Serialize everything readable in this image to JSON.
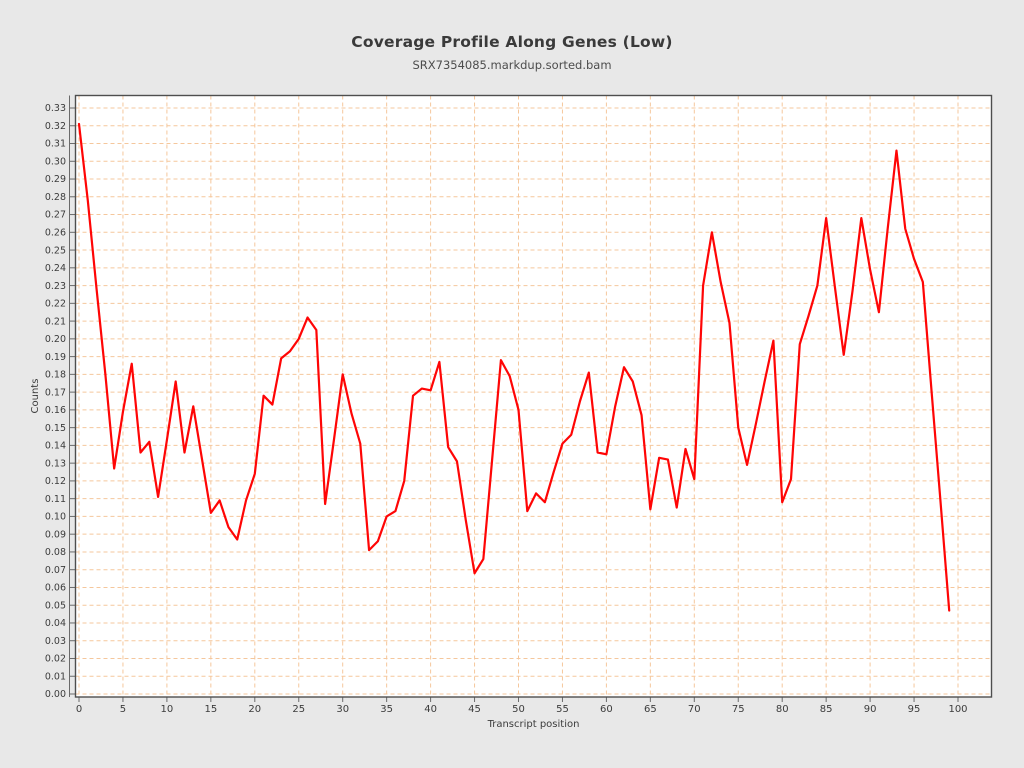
{
  "chart_data": {
    "type": "line",
    "title": "Coverage Profile Along Genes (Low)",
    "subtitle": "SRX7354085.markdup.sorted.bam",
    "xlabel": "Transcript position",
    "ylabel": "Counts",
    "x": [
      0,
      1,
      2,
      3,
      4,
      5,
      6,
      7,
      8,
      9,
      10,
      11,
      12,
      13,
      14,
      15,
      16,
      17,
      18,
      19,
      20,
      21,
      22,
      23,
      24,
      25,
      26,
      27,
      28,
      29,
      30,
      31,
      32,
      33,
      34,
      35,
      36,
      37,
      38,
      39,
      40,
      41,
      42,
      43,
      44,
      45,
      46,
      47,
      48,
      49,
      50,
      51,
      52,
      53,
      54,
      55,
      56,
      57,
      58,
      59,
      60,
      61,
      62,
      63,
      64,
      65,
      66,
      67,
      68,
      69,
      70,
      71,
      72,
      73,
      74,
      75,
      76,
      77,
      78,
      79,
      80,
      81,
      82,
      83,
      84,
      85,
      86,
      87,
      88,
      89,
      90,
      91,
      92,
      93,
      94,
      95,
      96,
      97,
      98,
      99
    ],
    "values": [
      0.321,
      0.278,
      0.228,
      0.18,
      0.127,
      0.159,
      0.186,
      0.136,
      0.142,
      0.111,
      0.143,
      0.176,
      0.136,
      0.162,
      0.132,
      0.102,
      0.109,
      0.094,
      0.087,
      0.109,
      0.124,
      0.168,
      0.163,
      0.189,
      0.193,
      0.2,
      0.212,
      0.205,
      0.107,
      0.143,
      0.18,
      0.158,
      0.141,
      0.081,
      0.086,
      0.1,
      0.103,
      0.12,
      0.168,
      0.172,
      0.171,
      0.187,
      0.139,
      0.131,
      0.098,
      0.068,
      0.076,
      0.132,
      0.188,
      0.179,
      0.16,
      0.103,
      0.113,
      0.108,
      0.125,
      0.141,
      0.146,
      0.165,
      0.181,
      0.136,
      0.135,
      0.162,
      0.184,
      0.176,
      0.157,
      0.104,
      0.133,
      0.132,
      0.105,
      0.138,
      0.121,
      0.23,
      0.26,
      0.232,
      0.209,
      0.15,
      0.129,
      0.152,
      0.176,
      0.199,
      0.108,
      0.121,
      0.197,
      0.213,
      0.23,
      0.268,
      0.229,
      0.191,
      0.227,
      0.268,
      0.239,
      0.215,
      0.262,
      0.306,
      0.262,
      0.245,
      0.232,
      0.17,
      0.109,
      0.047
    ],
    "xlim": [
      0,
      100
    ],
    "ylim": [
      0,
      0.33
    ],
    "x_tick_labels": [
      "0",
      "5",
      "10",
      "15",
      "20",
      "25",
      "30",
      "35",
      "40",
      "45",
      "50",
      "55",
      "60",
      "65",
      "70",
      "75",
      "80",
      "85",
      "90",
      "95",
      "100"
    ],
    "y_tick_labels": [
      "0.00",
      "0.01",
      "0.02",
      "0.03",
      "0.04",
      "0.05",
      "0.06",
      "0.07",
      "0.08",
      "0.09",
      "0.10",
      "0.11",
      "0.12",
      "0.13",
      "0.14",
      "0.15",
      "0.16",
      "0.17",
      "0.18",
      "0.19",
      "0.20",
      "0.21",
      "0.22",
      "0.23",
      "0.24",
      "0.25",
      "0.26",
      "0.27",
      "0.28",
      "0.29",
      "0.30",
      "0.31",
      "0.32",
      "0.33"
    ],
    "grid": true,
    "legend_position": "none",
    "line_color": "#ff0505",
    "grid_color": "#f5c79c",
    "plot_bg": "#ffffff",
    "page_bg": "#e8e8e8",
    "border_color": "#4e4e4e",
    "tick_color": "#6a6a6a"
  }
}
